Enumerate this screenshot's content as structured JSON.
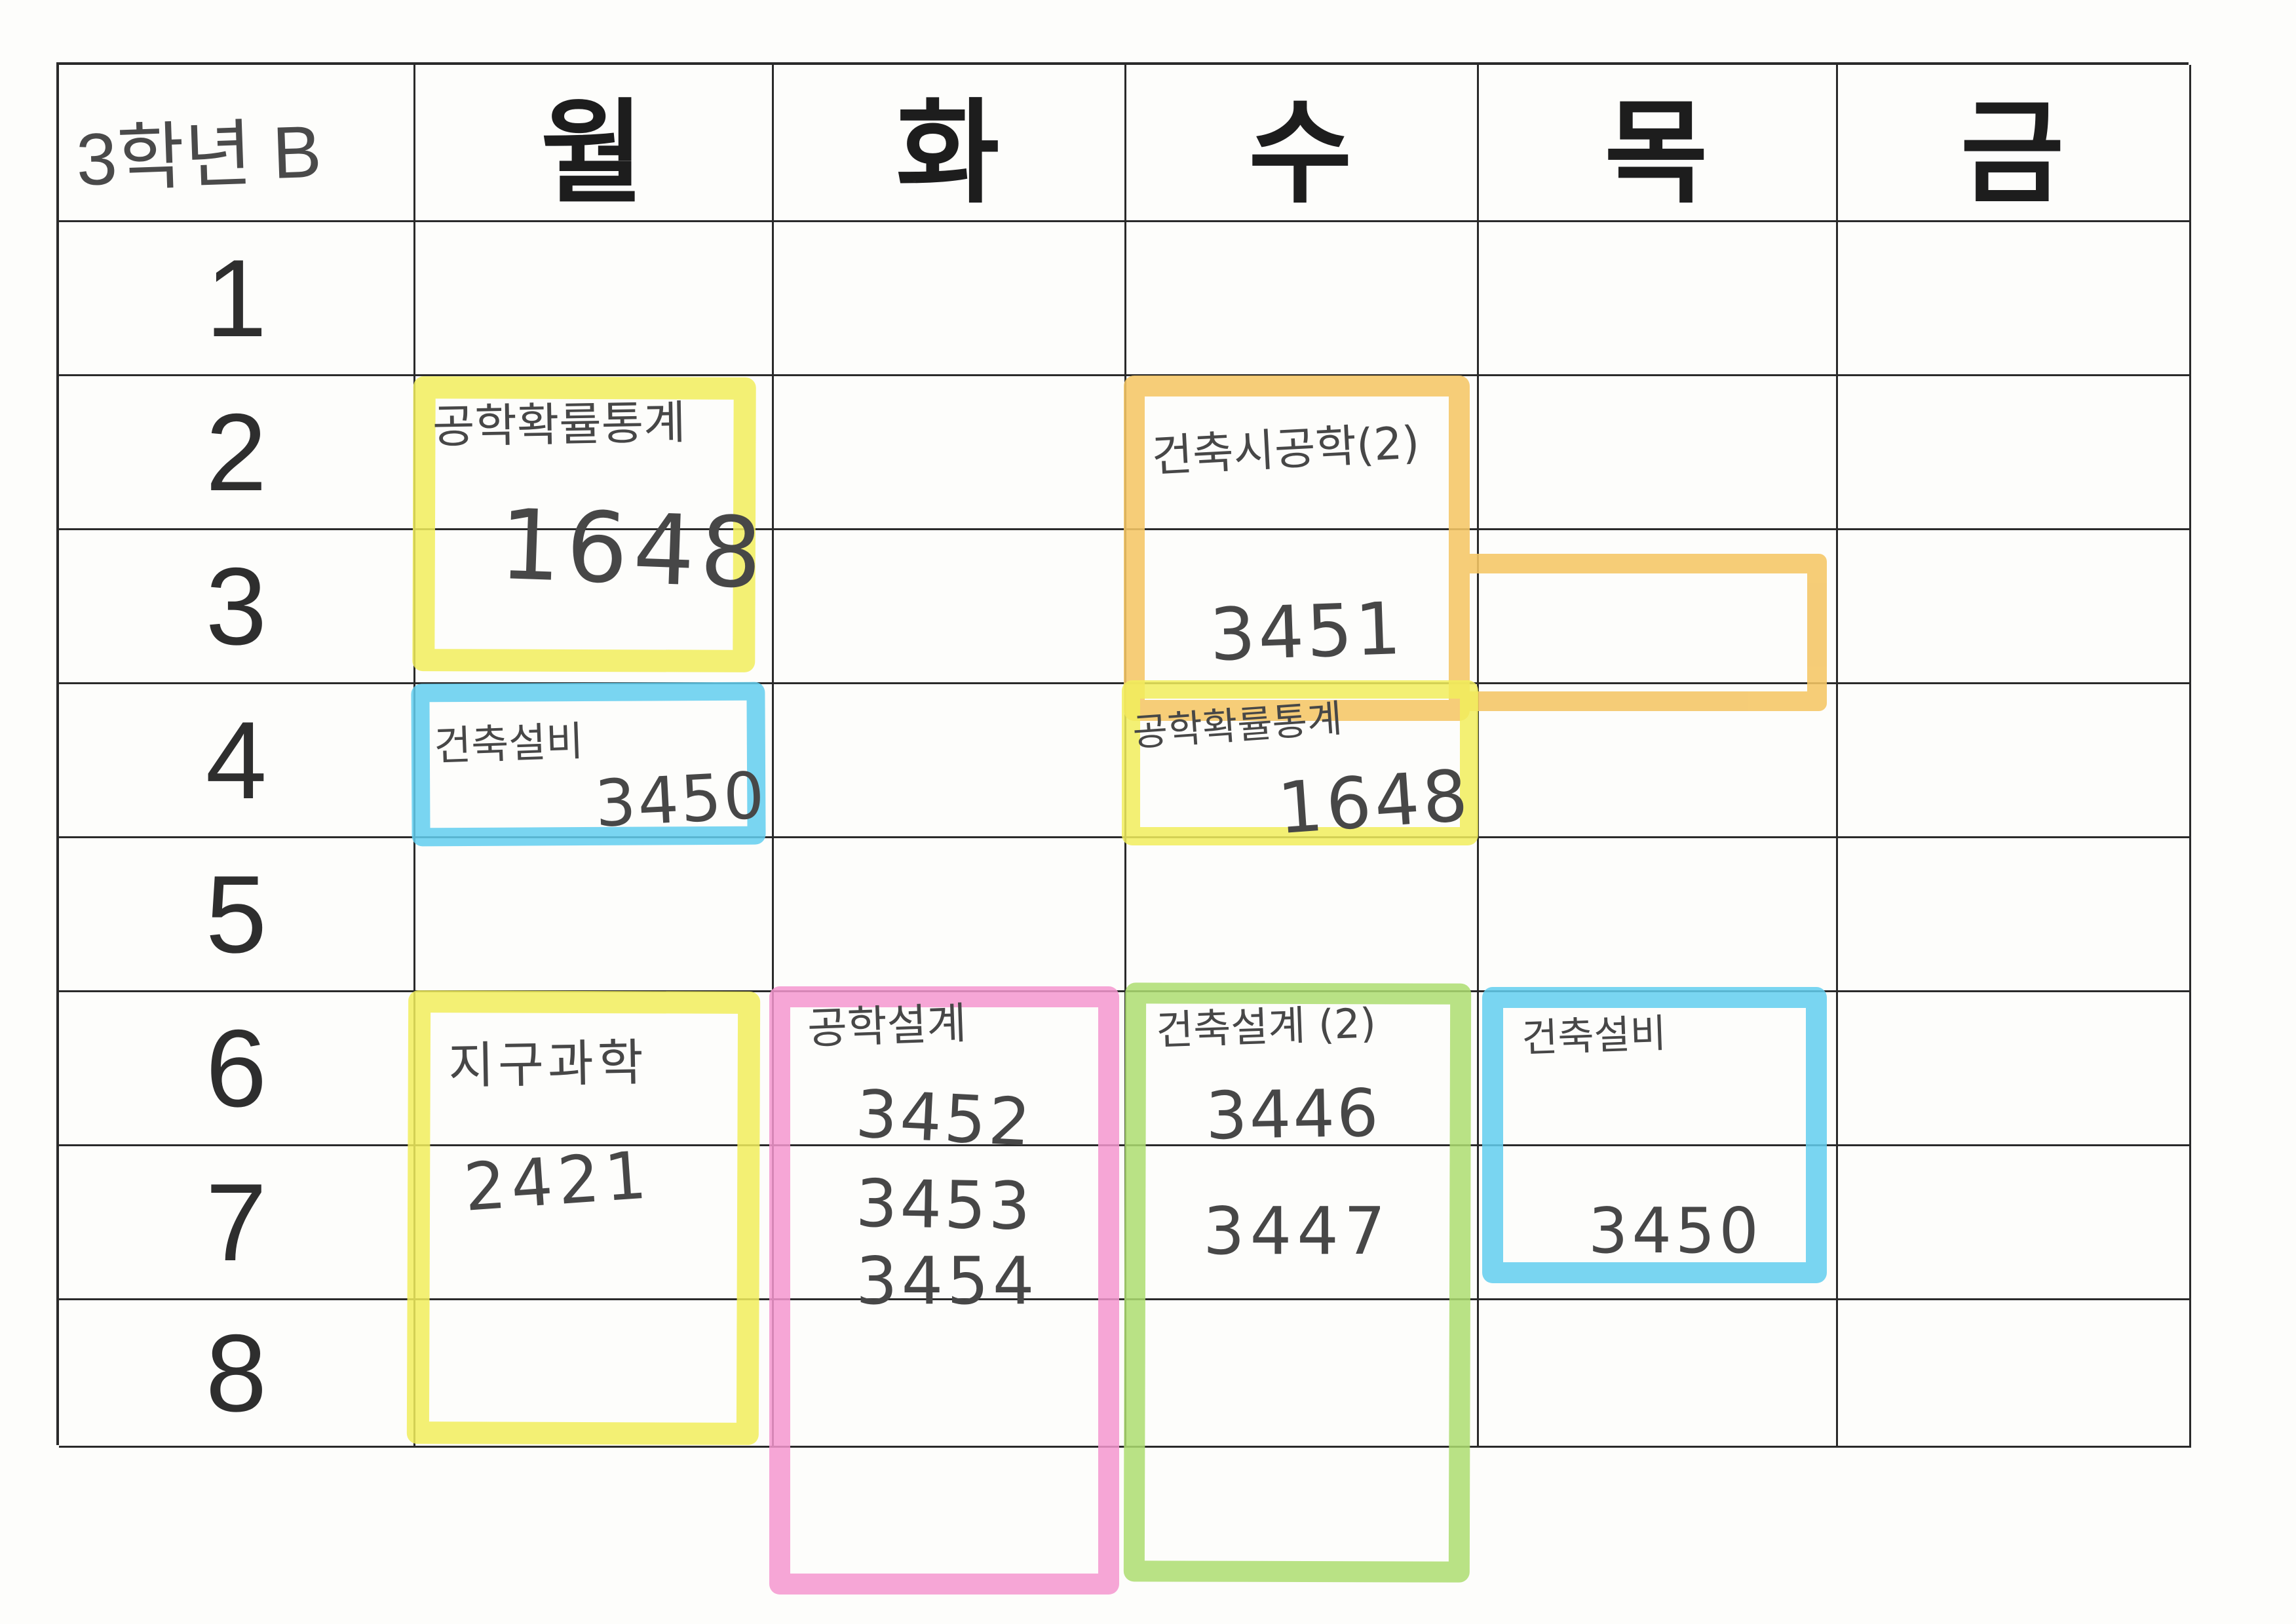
{
  "corner_label": "3학년 B",
  "days": [
    "월",
    "화",
    "수",
    "목",
    "금"
  ],
  "periods": [
    "1",
    "2",
    "3",
    "4",
    "5",
    "6",
    "7",
    "8"
  ],
  "colors": {
    "highlight_yellow": "#f1ed5c",
    "highlight_orange": "#f5c665",
    "highlight_blue": "#61ceee",
    "highlight_pink": "#f596cf",
    "highlight_green": "#addd70",
    "grid_line": "#2a2a2a",
    "ink": "#474747",
    "paper": "#fdfdfb"
  },
  "entries": [
    {
      "day": "월",
      "periods": "2-3",
      "highlight": "yellow",
      "subject": "공학확률통계",
      "room": "1648"
    },
    {
      "day": "수",
      "periods": "2-3",
      "highlight": "orange",
      "subject": "건축시공학(2)",
      "room": "3451"
    },
    {
      "day": "월",
      "periods": "4",
      "highlight": "blue",
      "subject": "건축설비",
      "room": "3450"
    },
    {
      "day": "수",
      "periods": "4",
      "highlight": "yellow",
      "subject": "공학확률통계",
      "room": "1648"
    },
    {
      "day": "월",
      "periods": "6-8",
      "highlight": "yellow",
      "subject": "지구과학",
      "room": "2421"
    },
    {
      "day": "화",
      "periods": "6-8",
      "highlight": "pink",
      "subject": "공학설계",
      "rooms": [
        "3452",
        "3453",
        "3454"
      ]
    },
    {
      "day": "수",
      "periods": "6-8",
      "highlight": "green",
      "subject": "건축설계 (2)",
      "rooms": [
        "3446",
        "3447"
      ]
    },
    {
      "day": "목",
      "periods": "6-7",
      "highlight": "blue",
      "subject": "건축설비",
      "room": "3450"
    }
  ]
}
